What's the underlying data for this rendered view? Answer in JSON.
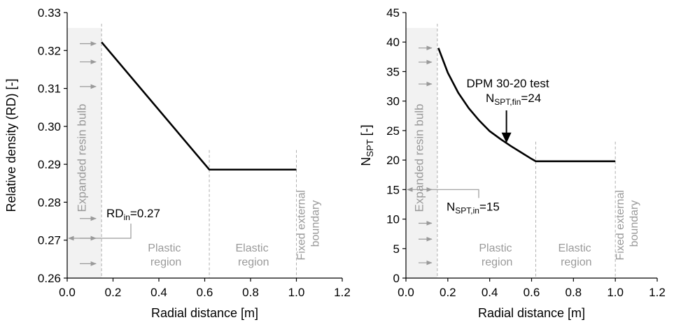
{
  "chart_data": [
    {
      "type": "line",
      "xlabel": "Radial distance [m]",
      "ylabel": "Relative density (RD) [-]",
      "xlim": [
        0.0,
        1.2
      ],
      "ylim": [
        0.26,
        0.33
      ],
      "x_ticks": [
        "0.0",
        "0.2",
        "0.4",
        "0.6",
        "0.8",
        "1.0",
        "1.2"
      ],
      "y_ticks": [
        "0.26",
        "0.27",
        "0.28",
        "0.29",
        "0.30",
        "0.31",
        "0.32",
        "0.33"
      ],
      "grid": false,
      "series": [
        {
          "points": [
            [
              0.15,
              0.3222
            ],
            [
              0.62,
              0.2886
            ],
            [
              1.0,
              0.2886
            ]
          ],
          "color": "#000000"
        }
      ],
      "regions": {
        "bulb": {
          "x": [
            0.0,
            0.15
          ],
          "label": "Expanded resin bulb",
          "color": "#f2f2f2"
        },
        "plastic": {
          "label": "Plastic region",
          "lines": [
            "Plastic",
            "region"
          ]
        },
        "elastic": {
          "label": "Elastic region",
          "lines": [
            "Elastic",
            "region"
          ]
        },
        "boundary": {
          "label": "Fixed external boundary",
          "lines": [
            "Fixed external",
            "boundary"
          ]
        },
        "dividers": [
          0.15,
          0.62,
          1.0
        ]
      },
      "arrow_y_values": [
        0.3218,
        0.317,
        0.3105,
        0.2757,
        0.2705,
        0.2638
      ],
      "annotations": {
        "initial": {
          "main": "RD",
          "sub": "in",
          "value": "=0.27",
          "y": 0.2705
        }
      }
    },
    {
      "type": "line",
      "xlabel": "Radial distance [m]",
      "ylabel_main": "N",
      "ylabel_sub": "SPT",
      "ylabel_unit": " [-]",
      "xlim": [
        0.0,
        1.2
      ],
      "ylim": [
        0,
        45
      ],
      "x_ticks": [
        "0.0",
        "0.2",
        "0.4",
        "0.6",
        "0.8",
        "1.0",
        "1.2"
      ],
      "y_ticks": [
        "0",
        "5",
        "10",
        "15",
        "20",
        "25",
        "30",
        "35",
        "40",
        "45"
      ],
      "grid": false,
      "series": [
        {
          "points": [
            [
              0.155,
              39.0
            ],
            [
              0.2,
              34.8
            ],
            [
              0.25,
              31.4
            ],
            [
              0.3,
              28.8
            ],
            [
              0.35,
              26.7
            ],
            [
              0.4,
              24.9
            ],
            [
              0.45,
              23.6
            ],
            [
              0.5,
              22.4
            ],
            [
              0.55,
              21.3
            ],
            [
              0.6,
              20.2
            ],
            [
              0.62,
              19.8
            ],
            [
              1.0,
              19.8
            ]
          ],
          "color": "#000000"
        }
      ],
      "regions": {
        "bulb": {
          "x": [
            0.0,
            0.15
          ],
          "label": "Expanded resin bulb",
          "color": "#f2f2f2"
        },
        "plastic": {
          "label": "Plastic region",
          "lines": [
            "Plastic",
            "region"
          ]
        },
        "elastic": {
          "label": "Elastic region",
          "lines": [
            "Elastic",
            "region"
          ]
        },
        "boundary": {
          "label": "Fixed external boundary",
          "lines": [
            "Fixed external",
            "boundary"
          ]
        },
        "dividers": [
          0.15,
          0.62,
          1.0
        ]
      },
      "arrow_y_values": [
        39.0,
        36.6,
        32.9,
        15.0,
        9.3,
        6.6,
        2.6
      ],
      "annotations": {
        "test": {
          "title": "DPM 30-20 test",
          "main": "N",
          "sub": "SPT,fin",
          "value": "=24",
          "arrow_x": 0.48,
          "arrow_y": 23.0
        },
        "initial": {
          "main": "N",
          "sub": "SPT,in",
          "value": "=15",
          "y": 15.0
        }
      }
    }
  ]
}
